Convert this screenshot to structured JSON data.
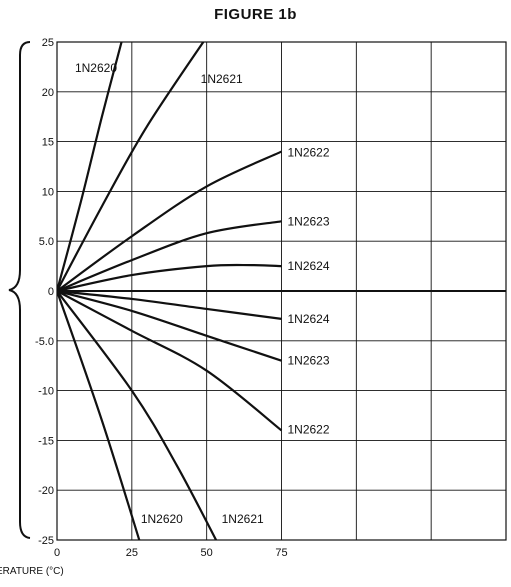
{
  "title": "FIGURE 1b",
  "chart_data": {
    "type": "line",
    "title": "FIGURE 1b",
    "xlabel": "ERATURE (°C)",
    "ylabel": "",
    "xlim": [
      0,
      150
    ],
    "ylim": [
      -25,
      25
    ],
    "grid": true,
    "x_ticks": [
      0,
      25,
      50,
      75
    ],
    "x_tick_labels": [
      "0",
      "25",
      "50",
      "75"
    ],
    "y_ticks": [
      25,
      20,
      15,
      10,
      5,
      0,
      -5,
      -10,
      -15,
      -20,
      -25
    ],
    "y_tick_labels": [
      "25",
      "20",
      "15",
      "10",
      "5.0",
      "0",
      "-5.0",
      "-10",
      "-15",
      "-20",
      "-25"
    ],
    "series": [
      {
        "name": "1N2620",
        "points": [
          [
            0,
            0
          ],
          [
            8,
            9
          ],
          [
            15,
            17.5
          ],
          [
            22,
            25.5
          ]
        ],
        "label_at": [
          6,
          22.4
        ]
      },
      {
        "name": "1N2621",
        "points": [
          [
            0,
            0
          ],
          [
            15,
            8.5
          ],
          [
            30,
            16.5
          ],
          [
            50,
            25.5
          ]
        ],
        "label_at": [
          48,
          21.3
        ]
      },
      {
        "name": "1N2622",
        "points": [
          [
            0,
            0
          ],
          [
            25,
            5.5
          ],
          [
            50,
            10.5
          ],
          [
            75,
            14
          ]
        ],
        "label_at": [
          77,
          13.9
        ]
      },
      {
        "name": "1N2623",
        "points": [
          [
            0,
            0
          ],
          [
            25,
            3.1
          ],
          [
            50,
            5.8
          ],
          [
            75,
            7
          ]
        ],
        "label_at": [
          77,
          7.0
        ]
      },
      {
        "name": "1N2624",
        "points": [
          [
            0,
            0
          ],
          [
            25,
            1.6
          ],
          [
            50,
            2.5
          ],
          [
            65,
            2.6
          ],
          [
            75,
            2.5
          ]
        ],
        "label_at": [
          77,
          2.5
        ]
      },
      {
        "name": "1N2624",
        "points": [
          [
            0,
            0
          ],
          [
            25,
            -0.8
          ],
          [
            50,
            -1.8
          ],
          [
            75,
            -2.8
          ]
        ],
        "label_at": [
          77,
          -2.8
        ]
      },
      {
        "name": "1N2623",
        "points": [
          [
            0,
            0
          ],
          [
            25,
            -2
          ],
          [
            50,
            -4.5
          ],
          [
            75,
            -7
          ]
        ],
        "label_at": [
          77,
          -7.0
        ]
      },
      {
        "name": "1N2622",
        "points": [
          [
            0,
            0
          ],
          [
            25,
            -4
          ],
          [
            50,
            -8
          ],
          [
            75,
            -14
          ]
        ],
        "label_at": [
          77,
          -13.9
        ]
      },
      {
        "name": "1N2620",
        "points": [
          [
            0,
            0
          ],
          [
            15,
            -13
          ],
          [
            28,
            -25.5
          ]
        ],
        "label_at": [
          28,
          -22.9
        ]
      },
      {
        "name": "1N2621",
        "points": [
          [
            0,
            0
          ],
          [
            25,
            -10
          ],
          [
            40,
            -17.5
          ],
          [
            54,
            -25.5
          ]
        ],
        "label_at": [
          55,
          -22.9
        ]
      }
    ]
  }
}
